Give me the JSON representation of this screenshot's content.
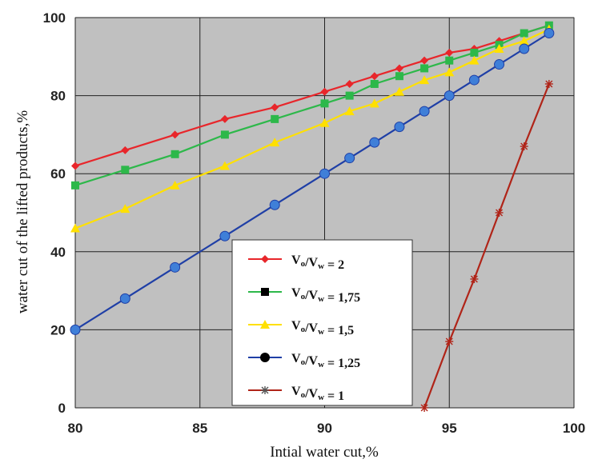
{
  "chart_data": {
    "type": "line",
    "xlabel": "Intial water cut,%",
    "ylabel": "water cut of the lifted products,%",
    "xlim": [
      80,
      100
    ],
    "ylim": [
      0,
      100
    ],
    "x_ticks": [
      80,
      85,
      90,
      95,
      100
    ],
    "y_ticks": [
      0,
      20,
      40,
      60,
      80,
      100
    ],
    "grid": true,
    "legend_position": "lower-center",
    "series": [
      {
        "name": "Vo/Vw = 2",
        "label_main": "V",
        "label_sub1": "o",
        "label_mid": "/V",
        "label_sub2": "w",
        "label_value": "= 2",
        "color": "#e8262b",
        "marker": "diamond",
        "legend_marker_color": "#e8262b",
        "x": [
          80,
          82,
          84,
          86,
          88,
          90,
          91,
          92,
          93,
          94,
          95,
          96,
          97,
          98,
          99
        ],
        "values": [
          62,
          66,
          70,
          74,
          77,
          81,
          83,
          85,
          87,
          89,
          91,
          92,
          94,
          96,
          98
        ]
      },
      {
        "name": "Vo/Vw = 1,75",
        "label_main": "V",
        "label_sub1": "o",
        "label_mid": "/V",
        "label_sub2": "w",
        "label_value": "= 1,75",
        "color": "#2db84a",
        "marker": "square",
        "legend_marker_color": "#000000",
        "x": [
          80,
          82,
          84,
          86,
          88,
          90,
          91,
          92,
          93,
          94,
          95,
          96,
          97,
          98,
          99
        ],
        "values": [
          57,
          61,
          65,
          70,
          74,
          78,
          80,
          83,
          85,
          87,
          89,
          91,
          93,
          96,
          98
        ]
      },
      {
        "name": "Vo/Vw = 1,5",
        "label_main": "V",
        "label_sub1": "o",
        "label_mid": "/V",
        "label_sub2": "w",
        "label_value": "= 1,5",
        "color": "#ffe000",
        "marker": "triangle",
        "legend_marker_color": "#ffe000",
        "x": [
          80,
          82,
          84,
          86,
          88,
          90,
          91,
          92,
          93,
          94,
          95,
          96,
          97,
          98,
          99
        ],
        "values": [
          46,
          51,
          57,
          62,
          68,
          73,
          76,
          78,
          81,
          84,
          86,
          89,
          92,
          94,
          97
        ]
      },
      {
        "name": "Vo/Vw = 1,25",
        "label_main": "V",
        "label_sub1": "o",
        "label_mid": "/V",
        "label_sub2": "w",
        "label_value": "= 1,25",
        "color": "#1f3fa6",
        "marker": "circle",
        "marker_fill": "#3f7fd8",
        "legend_marker_color": "#000000",
        "x": [
          80,
          82,
          84,
          86,
          88,
          90,
          91,
          92,
          93,
          94,
          95,
          96,
          97,
          98,
          99
        ],
        "values": [
          20,
          28,
          36,
          44,
          52,
          60,
          64,
          68,
          72,
          76,
          80,
          84,
          88,
          92,
          96
        ]
      },
      {
        "name": "Vo/Vw = 1",
        "label_main": "V",
        "label_sub1": "o",
        "label_mid": "/V",
        "label_sub2": "w",
        "label_value": "= 1",
        "color": "#b02418",
        "marker": "star",
        "legend_marker_color": "#555555",
        "x": [
          94,
          95,
          96,
          97,
          98,
          99
        ],
        "values": [
          0,
          17,
          33,
          50,
          67,
          83
        ]
      }
    ]
  }
}
